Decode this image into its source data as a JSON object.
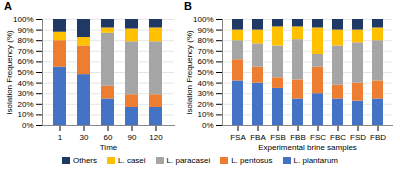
{
  "chart_data": [
    {
      "type": "bar",
      "stacked": true,
      "title": "A",
      "xlabel": "Time",
      "ylabel": "Isolation Frequency (%)",
      "categories": [
        "1",
        "30",
        "60",
        "90",
        "120"
      ],
      "series": [
        {
          "name": "L. plantarum",
          "color": "#4472c4",
          "values": [
            55,
            48,
            25,
            17,
            17
          ]
        },
        {
          "name": "L. pentosus",
          "color": "#ed7d31",
          "values": [
            25,
            27,
            12,
            12,
            12
          ]
        },
        {
          "name": "L. paracasei",
          "color": "#a5a5a5",
          "values": [
            0,
            0,
            50,
            50,
            50
          ]
        },
        {
          "name": "L. casei",
          "color": "#ffc000",
          "values": [
            8,
            8,
            5,
            12,
            13
          ]
        },
        {
          "name": "Others",
          "color": "#203864",
          "values": [
            12,
            17,
            8,
            9,
            8
          ]
        }
      ],
      "ylim": [
        0,
        100
      ],
      "yticks": [
        {
          "value": 0,
          "label": "0%"
        },
        {
          "value": 10,
          "label": "10%"
        },
        {
          "value": 20,
          "label": "20%"
        },
        {
          "value": 30,
          "label": "30%"
        },
        {
          "value": 40,
          "label": "40%"
        },
        {
          "value": 50,
          "label": "50%"
        },
        {
          "value": 60,
          "label": "60%"
        },
        {
          "value": 70,
          "label": "70%"
        },
        {
          "value": 80,
          "label": "80%"
        },
        {
          "value": 90,
          "label": "90%"
        },
        {
          "value": 100,
          "label": "100%"
        }
      ],
      "grid": true,
      "legend": "bottom"
    },
    {
      "type": "bar",
      "stacked": true,
      "title": "B",
      "xlabel": "Experimental brine samples",
      "ylabel": "Isolation Frequency (%)",
      "categories": [
        "FSA",
        "FBA",
        "FSB",
        "FBB",
        "FSC",
        "FBC",
        "FSD",
        "FBD"
      ],
      "series": [
        {
          "name": "L. plantarum",
          "color": "#4472c4",
          "values": [
            42,
            40,
            35,
            25,
            30,
            25,
            23,
            25
          ]
        },
        {
          "name": "L. pentosus",
          "color": "#ed7d31",
          "values": [
            20,
            15,
            10,
            18,
            25,
            13,
            17,
            17
          ]
        },
        {
          "name": "L. paracasei",
          "color": "#a5a5a5",
          "values": [
            18,
            22,
            30,
            38,
            12,
            37,
            38,
            38
          ]
        },
        {
          "name": "L. casei",
          "color": "#ffc000",
          "values": [
            10,
            13,
            18,
            12,
            25,
            15,
            12,
            12
          ]
        },
        {
          "name": "Others",
          "color": "#203864",
          "values": [
            10,
            10,
            7,
            7,
            8,
            10,
            10,
            8
          ]
        }
      ],
      "ylim": [
        0,
        100
      ],
      "yticks": [
        {
          "value": 0,
          "label": "0%"
        },
        {
          "value": 10,
          "label": "10%"
        },
        {
          "value": 20,
          "label": "20%"
        },
        {
          "value": 30,
          "label": "30%"
        },
        {
          "value": 40,
          "label": "40%"
        },
        {
          "value": 50,
          "label": "50%"
        },
        {
          "value": 60,
          "label": "60%"
        },
        {
          "value": 70,
          "label": "70%"
        },
        {
          "value": 80,
          "label": "80%"
        },
        {
          "value": 90,
          "label": "90%"
        },
        {
          "value": 100,
          "label": "100%"
        }
      ],
      "grid": true,
      "legend": "bottom"
    }
  ]
}
